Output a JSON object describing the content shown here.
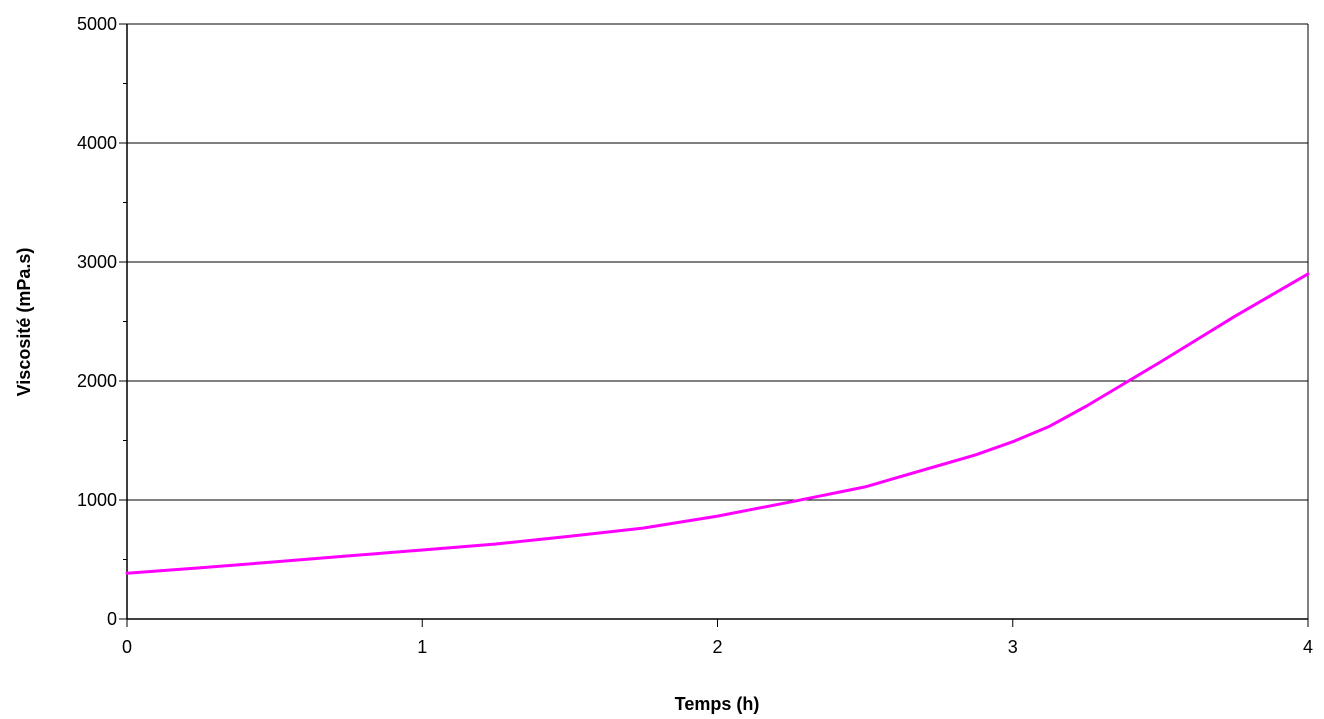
{
  "chart_data": {
    "type": "line",
    "title": "",
    "xlabel": "Temps (h)",
    "ylabel": "Viscosité (mPa.s)",
    "xlim": [
      0,
      4
    ],
    "ylim": [
      0,
      5000
    ],
    "x_ticks": [
      0,
      1,
      2,
      3,
      4
    ],
    "y_ticks": [
      0,
      1000,
      2000,
      3000,
      4000,
      5000
    ],
    "y_minor_step": 500,
    "grid": "horizontal",
    "legend": "none",
    "series": [
      {
        "color": "#ff00ff",
        "x": [
          0,
          0.25,
          0.5,
          0.75,
          1.0,
          1.25,
          1.5,
          1.75,
          2.0,
          2.25,
          2.5,
          2.75,
          2.875,
          3.0,
          3.125,
          3.25,
          3.375,
          3.5,
          3.625,
          3.75,
          3.875,
          4.0
        ],
        "y": [
          385,
          430,
          480,
          530,
          580,
          630,
          695,
          765,
          865,
          985,
          1110,
          1290,
          1380,
          1490,
          1620,
          1790,
          1975,
          2160,
          2350,
          2540,
          2720,
          2900
        ]
      }
    ]
  }
}
